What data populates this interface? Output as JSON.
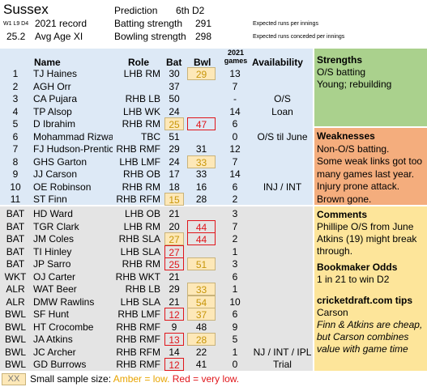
{
  "header": {
    "team": "Sussex",
    "record_prefix": "W1 L9 D4",
    "record_label": "2021 record",
    "avg_age": "25.2",
    "avg_age_label": "Avg Age XI",
    "prediction_label": "Prediction",
    "prediction_value": "6th D2",
    "batting_label": "Batting strength",
    "batting_value": "291",
    "bowling_label": "Bowling strength",
    "bowling_value": "298",
    "batting_note": "Expected runs per innings",
    "bowling_note": "Expected runs conceded per innings"
  },
  "columns": {
    "name": "Name",
    "role": "Role",
    "bat": "Bat",
    "bwl": "Bwl",
    "games_top": "2021",
    "games_bottom": "games",
    "availability": "Availability"
  },
  "colors": {
    "blue_panel": "#dde9f6",
    "grey_panel": "#e4e4e4",
    "strengths": "#aad18d",
    "weaknesses": "#f4ad7d",
    "comments": "#fde59a",
    "amber_fill": "#fde8b8",
    "red": "#e0151a"
  },
  "squad": [
    {
      "num": "1",
      "name": "TJ Haines",
      "role": "LHB RM",
      "bat": "30",
      "bwl": "29",
      "games": "13",
      "avail": "",
      "bat_flag": "",
      "bwl_flag": "amber"
    },
    {
      "num": "2",
      "name": "AGH Orr",
      "role": "",
      "bat": "37",
      "bwl": "",
      "games": "7",
      "avail": "",
      "bat_flag": "",
      "bwl_flag": ""
    },
    {
      "num": "3",
      "name": "CA Pujara",
      "role": "RHB LB",
      "bat": "50",
      "bwl": "",
      "games": "-",
      "avail": "O/S",
      "bat_flag": "",
      "bwl_flag": ""
    },
    {
      "num": "4",
      "name": "TP Alsop",
      "role": "LHB WK",
      "bat": "24",
      "bwl": "",
      "games": "14",
      "avail": "Loan",
      "bat_flag": "",
      "bwl_flag": ""
    },
    {
      "num": "5",
      "name": "D Ibrahim",
      "role": "RHB RM",
      "bat": "25",
      "bwl": "47",
      "games": "6",
      "avail": "",
      "bat_flag": "amber",
      "bwl_flag": "red"
    },
    {
      "num": "6",
      "name": "Mohammad Rizwan",
      "role": "TBC",
      "bat": "51",
      "bwl": "",
      "games": "0",
      "avail": "O/S til June",
      "bat_flag": "",
      "bwl_flag": ""
    },
    {
      "num": "7",
      "name": "FJ Hudson-Prentice",
      "role": "RHB RMF",
      "bat": "29",
      "bwl": "31",
      "games": "12",
      "avail": "",
      "bat_flag": "",
      "bwl_flag": ""
    },
    {
      "num": "8",
      "name": "GHS Garton",
      "role": "LHB LMF",
      "bat": "24",
      "bwl": "33",
      "games": "7",
      "avail": "",
      "bat_flag": "",
      "bwl_flag": "amber"
    },
    {
      "num": "9",
      "name": "JJ Carson",
      "role": "RHB OB",
      "bat": "17",
      "bwl": "33",
      "games": "14",
      "avail": "",
      "bat_flag": "",
      "bwl_flag": ""
    },
    {
      "num": "10",
      "name": "OE Robinson",
      "role": "RHB RM",
      "bat": "18",
      "bwl": "16",
      "games": "6",
      "avail": "INJ / INT",
      "bat_flag": "",
      "bwl_flag": ""
    },
    {
      "num": "11",
      "name": "ST Finn",
      "role": "RHB RFM",
      "bat": "15",
      "bwl": "28",
      "games": "2",
      "avail": "",
      "bat_flag": "amber",
      "bwl_flag": ""
    }
  ],
  "reserves": [
    {
      "num": "BAT",
      "name": "HD Ward",
      "role": "LHB OB",
      "bat": "21",
      "bwl": "",
      "games": "3",
      "avail": "",
      "bat_flag": "",
      "bwl_flag": ""
    },
    {
      "num": "BAT",
      "name": "TGR Clark",
      "role": "LHB RM",
      "bat": "20",
      "bwl": "44",
      "games": "7",
      "avail": "",
      "bat_flag": "",
      "bwl_flag": "red"
    },
    {
      "num": "BAT",
      "name": "JM Coles",
      "role": "RHB SLA",
      "bat": "27",
      "bwl": "44",
      "games": "2",
      "avail": "",
      "bat_flag": "amber",
      "bwl_flag": "red"
    },
    {
      "num": "BAT",
      "name": "TI Hinley",
      "role": "LHB SLA",
      "bat": "27",
      "bwl": "",
      "games": "1",
      "avail": "",
      "bat_flag": "red",
      "bwl_flag": ""
    },
    {
      "num": "BAT",
      "name": "JP Sarro",
      "role": "RHB RM",
      "bat": "25",
      "bwl": "51",
      "games": "3",
      "avail": "",
      "bat_flag": "red",
      "bwl_flag": "amber"
    },
    {
      "num": "WKT",
      "name": "OJ Carter",
      "role": "RHB WKT",
      "bat": "21",
      "bwl": "",
      "games": "6",
      "avail": "",
      "bat_flag": "",
      "bwl_flag": ""
    },
    {
      "num": "ALR",
      "name": "WAT Beer",
      "role": "RHB LB",
      "bat": "29",
      "bwl": "33",
      "games": "1",
      "avail": "",
      "bat_flag": "",
      "bwl_flag": "amber"
    },
    {
      "num": "ALR",
      "name": "DMW Rawlins",
      "role": "LHB SLA",
      "bat": "21",
      "bwl": "54",
      "games": "10",
      "avail": "",
      "bat_flag": "",
      "bwl_flag": "amber"
    },
    {
      "num": "BWL",
      "name": "SF Hunt",
      "role": "RHB LMF",
      "bat": "12",
      "bwl": "37",
      "games": "6",
      "avail": "",
      "bat_flag": "red",
      "bwl_flag": "amber"
    },
    {
      "num": "BWL",
      "name": "HT Crocombe",
      "role": "RHB RMF",
      "bat": "9",
      "bwl": "48",
      "games": "9",
      "avail": "",
      "bat_flag": "",
      "bwl_flag": ""
    },
    {
      "num": "BWL",
      "name": "JA Atkins",
      "role": "RHB RMF",
      "bat": "13",
      "bwl": "28",
      "games": "5",
      "avail": "",
      "bat_flag": "red",
      "bwl_flag": "amber"
    },
    {
      "num": "BWL",
      "name": "JC Archer",
      "role": "RHB RFM",
      "bat": "14",
      "bwl": "22",
      "games": "1",
      "avail": "NJ / INT / IPL",
      "bat_flag": "",
      "bwl_flag": ""
    },
    {
      "num": "BWL",
      "name": "GD Burrows",
      "role": "RHB RMF",
      "bat": "12",
      "bwl": "41",
      "games": "0",
      "avail": "Trial",
      "bat_flag": "red",
      "bwl_flag": ""
    }
  ],
  "strengths": {
    "title": "Strengths",
    "lines": [
      "O/S batting",
      "Young; rebuilding"
    ]
  },
  "weaknesses": {
    "title": "Weaknesses",
    "lines": [
      "Non-O/S batting.",
      "Some weak links got too",
      "many games last year.",
      "Injury prone attack.",
      "Brown gone."
    ]
  },
  "comments": {
    "title": "Comments",
    "lines": [
      "Phillipe O/S from June",
      "Atkins (19) might break",
      "through."
    ],
    "odds_title": "Bookmaker Odds",
    "odds_text": "1 in 21 to win D2",
    "tips_title": "cricketdraft.com tips",
    "tips_pick": "Carson",
    "tips_lines": [
      "Finn & Atkins are cheap,",
      "but Carson combines",
      "value with game time"
    ]
  },
  "legend": {
    "box": "XX",
    "prefix": "Small sample size: ",
    "amber": "Amber = low.",
    "red": "Red = very low."
  }
}
